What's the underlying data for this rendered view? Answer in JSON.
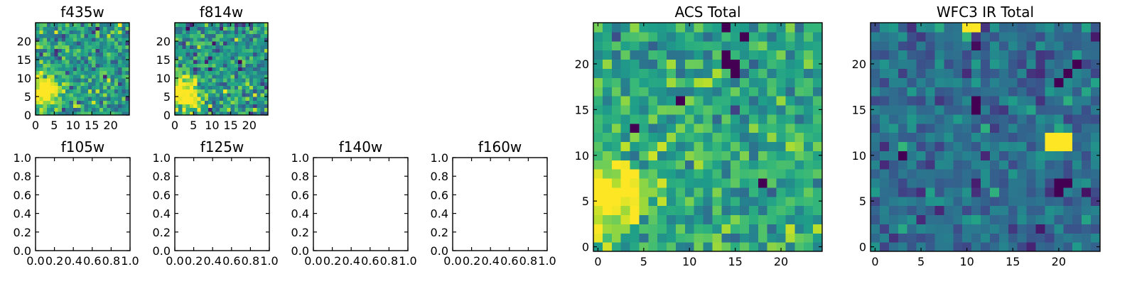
{
  "chart_data": [
    {
      "type": "heatmap",
      "title": "f435w",
      "xlim": [
        0,
        25
      ],
      "ylim": [
        0,
        25
      ],
      "xticks": [
        "0",
        "5",
        "10",
        "15",
        "20"
      ],
      "yticks": [
        "0",
        "5",
        "10",
        "15",
        "20"
      ],
      "grid_size": 25,
      "seed": 11,
      "mean": 0.55,
      "noise": 0.16,
      "blobs": [
        {
          "x": 1,
          "y": 6,
          "r": 3.2,
          "amp": 0.6
        },
        {
          "x": 4,
          "y": 6.5,
          "r": 1.5,
          "amp": 0.3
        }
      ],
      "colormap": "viridis"
    },
    {
      "type": "heatmap",
      "title": "f814w",
      "xlim": [
        0,
        25
      ],
      "ylim": [
        0,
        25
      ],
      "xticks": [
        "0",
        "5",
        "10",
        "15",
        "20"
      ],
      "yticks": [
        "0",
        "5",
        "10",
        "15",
        "20"
      ],
      "grid_size": 25,
      "seed": 23,
      "mean": 0.52,
      "noise": 0.17,
      "blobs": [
        {
          "x": 1.5,
          "y": 5,
          "r": 3.5,
          "amp": 0.6
        }
      ],
      "colormap": "viridis"
    },
    {
      "type": "empty",
      "title": "f105w",
      "xlim": [
        0,
        1
      ],
      "ylim": [
        0,
        1
      ],
      "xticks": [
        "0.0",
        "0.2",
        "0.4",
        "0.6",
        "0.8",
        "1.0"
      ],
      "yticks": [
        "0.0",
        "0.2",
        "0.4",
        "0.6",
        "0.8",
        "1.0"
      ]
    },
    {
      "type": "empty",
      "title": "f125w",
      "xlim": [
        0,
        1
      ],
      "ylim": [
        0,
        1
      ],
      "xticks": [
        "0.0",
        "0.2",
        "0.4",
        "0.6",
        "0.8",
        "1.0"
      ],
      "yticks": [
        "0.0",
        "0.2",
        "0.4",
        "0.6",
        "0.8",
        "1.0"
      ]
    },
    {
      "type": "empty",
      "title": "f140w",
      "xlim": [
        0,
        1
      ],
      "ylim": [
        0,
        1
      ],
      "xticks": [
        "0.0",
        "0.2",
        "0.4",
        "0.6",
        "0.8",
        "1.0"
      ],
      "yticks": [
        "0.0",
        "0.2",
        "0.4",
        "0.6",
        "0.8",
        "1.0"
      ]
    },
    {
      "type": "empty",
      "title": "f160w",
      "xlim": [
        0,
        1
      ],
      "ylim": [
        0,
        1
      ],
      "xticks": [
        "0.0",
        "0.2",
        "0.4",
        "0.6",
        "0.8",
        "1.0"
      ],
      "yticks": [
        "0.0",
        "0.2",
        "0.4",
        "0.6",
        "0.8",
        "1.0"
      ]
    },
    {
      "type": "heatmap",
      "title": "ACS Total",
      "xlim": [
        -0.5,
        24.5
      ],
      "ylim": [
        -0.5,
        24.5
      ],
      "xticks": [
        "0",
        "5",
        "10",
        "15",
        "20"
      ],
      "yticks": [
        "0",
        "5",
        "10",
        "15",
        "20"
      ],
      "grid_size": 25,
      "seed": 37,
      "mean": 0.6,
      "noise": 0.13,
      "blobs": [
        {
          "x": 0.5,
          "y": 5.5,
          "r": 3,
          "amp": 0.5
        },
        {
          "x": 5,
          "y": 6,
          "r": 1.5,
          "amp": 0.2
        }
      ],
      "dark_pixels": [
        [
          14,
          21
        ],
        [
          14,
          20
        ],
        [
          15,
          20
        ],
        [
          15,
          19
        ],
        [
          16,
          23
        ],
        [
          9,
          16
        ],
        [
          4,
          13
        ],
        [
          18,
          7
        ],
        [
          14,
          24
        ]
      ],
      "colormap": "viridis"
    },
    {
      "type": "heatmap",
      "title": "WFC3 IR Total",
      "xlim": [
        -0.5,
        24.5
      ],
      "ylim": [
        -0.5,
        24.5
      ],
      "xticks": [
        "0",
        "5",
        "10",
        "15",
        "20"
      ],
      "yticks": [
        "0",
        "5",
        "10",
        "15",
        "20"
      ],
      "grid_size": 25,
      "seed": 53,
      "mean": 0.36,
      "noise": 0.11,
      "bright_pixels": [
        [
          19,
          12
        ],
        [
          20,
          12
        ],
        [
          21,
          12
        ],
        [
          19,
          11
        ],
        [
          20,
          11
        ],
        [
          21,
          11
        ],
        [
          10,
          24
        ],
        [
          11,
          24
        ]
      ],
      "dark_pixels": [
        [
          11,
          16
        ],
        [
          11,
          15
        ],
        [
          20,
          18
        ],
        [
          21,
          19
        ],
        [
          22,
          20
        ],
        [
          21,
          7
        ],
        [
          20,
          7
        ],
        [
          20,
          6
        ],
        [
          3,
          10
        ]
      ],
      "colormap": "viridis"
    }
  ]
}
